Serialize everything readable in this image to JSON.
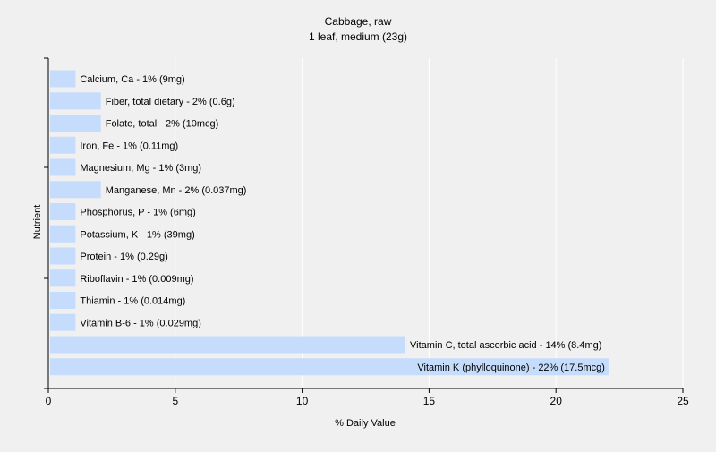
{
  "chart_data": {
    "type": "bar",
    "orientation": "horizontal",
    "title": "Cabbage, raw",
    "subtitle": "1 leaf, medium (23g)",
    "xlabel": "% Daily Value",
    "ylabel": "Nutrient",
    "xlim": [
      0,
      25
    ],
    "xticks": [
      0,
      5,
      10,
      15,
      20,
      25
    ],
    "grid": true,
    "bar_color": "#c6dcfc",
    "grid_color": "#ffffff",
    "plot_background": "#f0f0f0",
    "categories": [
      "Calcium, Ca",
      "Fiber, total dietary",
      "Folate, total",
      "Iron, Fe",
      "Magnesium, Mg",
      "Manganese, Mn",
      "Phosphorus, P",
      "Potassium, K",
      "Protein",
      "Riboflavin",
      "Thiamin",
      "Vitamin B-6",
      "Vitamin C, total ascorbic acid",
      "Vitamin K (phylloquinone)"
    ],
    "values": [
      1,
      2,
      2,
      1,
      1,
      2,
      1,
      1,
      1,
      1,
      1,
      1,
      14,
      22
    ],
    "labels": [
      "Calcium, Ca - 1% (9mg)",
      "Fiber, total dietary - 2% (0.6g)",
      "Folate, total - 2% (10mcg)",
      "Iron, Fe - 1% (0.11mg)",
      "Magnesium, Mg - 1% (3mg)",
      "Manganese, Mn - 2% (0.037mg)",
      "Phosphorus, P - 1% (6mg)",
      "Potassium, K - 1% (39mg)",
      "Protein - 1% (0.29g)",
      "Riboflavin - 1% (0.009mg)",
      "Thiamin - 1% (0.014mg)",
      "Vitamin B-6 - 1% (0.029mg)",
      "Vitamin C, total ascorbic acid - 14% (8.4mg)",
      "Vitamin K (phylloquinone) - 22% (17.5mcg)"
    ]
  }
}
